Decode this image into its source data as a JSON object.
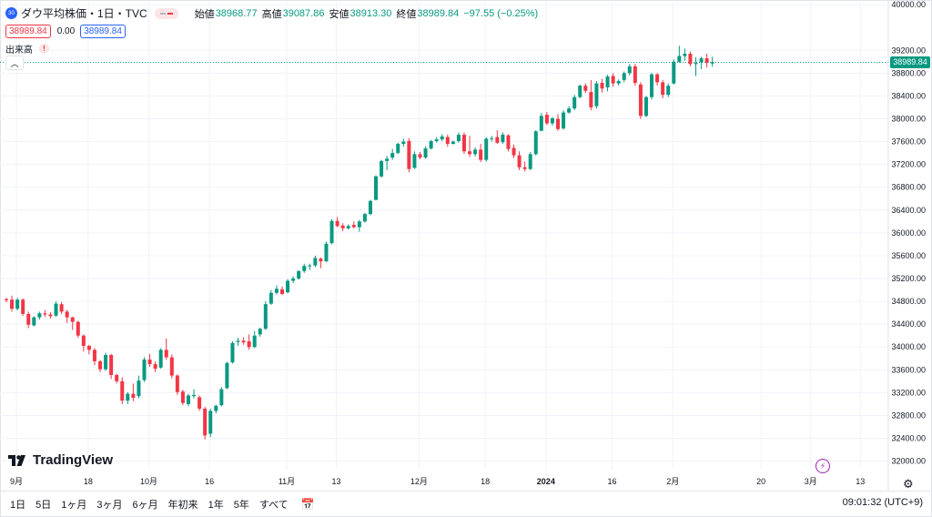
{
  "header": {
    "symbol_badge": "30",
    "title": "ダウ平均株価・1日・TVC",
    "open_label": "始値",
    "open": "38968.77",
    "high_label": "高値",
    "high": "39087.86",
    "low_label": "安値",
    "low": "38913.30",
    "close_label": "終値",
    "close": "38989.84",
    "change": "−97.55 (−0.25%)",
    "bid": "38989.84",
    "spread": "0.00",
    "ask": "38989.84",
    "volume_label": "出来高",
    "volume_warning": "!"
  },
  "logo_text": "TradingView",
  "last_price_tag": "38989.84",
  "bottom": {
    "ranges": [
      "1日",
      "5日",
      "1ヶ月",
      "3ヶ月",
      "6ヶ月",
      "年初来",
      "1年",
      "5年",
      "すべて"
    ],
    "clock": "09:01:32 (UTC+9)"
  },
  "colors": {
    "up": "#089981",
    "down": "#f23645",
    "grid": "#f0f3fa",
    "accent": "#2962ff",
    "text": "#131722"
  },
  "chart_data": {
    "type": "candlestick",
    "title": "ダウ平均株価・1日・TVC",
    "y_ticks": [
      32000,
      32400,
      32800,
      33200,
      33600,
      34000,
      34400,
      34800,
      35200,
      35600,
      36000,
      36400,
      36800,
      37200,
      37600,
      38000,
      38400,
      38800,
      39200,
      40000
    ],
    "x_ticks": [
      "9月",
      "18",
      "10月",
      "16",
      "11月",
      "13",
      "12月",
      "18",
      "2024",
      "16",
      "2月",
      "20",
      "3月",
      "13"
    ],
    "x_tick_candle_index": [
      1,
      14,
      25,
      36,
      50,
      59,
      74,
      86,
      97,
      109,
      120,
      136,
      145,
      154
    ],
    "ylim": [
      31850,
      40050
    ],
    "last_price": 38989.84,
    "candles_ohlc": [
      [
        34840,
        34860,
        34780,
        34820
      ],
      [
        34830,
        34900,
        34620,
        34670
      ],
      [
        34670,
        34860,
        34640,
        34830
      ],
      [
        34830,
        34850,
        34550,
        34580
      ],
      [
        34580,
        34620,
        34330,
        34390
      ],
      [
        34380,
        34540,
        34360,
        34520
      ],
      [
        34520,
        34620,
        34480,
        34590
      ],
      [
        34590,
        34650,
        34530,
        34570
      ],
      [
        34570,
        34610,
        34500,
        34540
      ],
      [
        34550,
        34800,
        34530,
        34760
      ],
      [
        34750,
        34790,
        34580,
        34620
      ],
      [
        34620,
        34650,
        34420,
        34520
      ],
      [
        34520,
        34530,
        34300,
        34440
      ],
      [
        34440,
        34460,
        34160,
        34200
      ],
      [
        34200,
        34220,
        33920,
        34020
      ],
      [
        34020,
        34040,
        33870,
        33950
      ],
      [
        33950,
        33980,
        33680,
        33750
      ],
      [
        33750,
        33770,
        33560,
        33610
      ],
      [
        33610,
        33900,
        33580,
        33860
      ],
      [
        33860,
        33880,
        33440,
        33510
      ],
      [
        33510,
        33530,
        33360,
        33400
      ],
      [
        33400,
        33470,
        33000,
        33060
      ],
      [
        33060,
        33210,
        33000,
        33180
      ],
      [
        33180,
        33360,
        33050,
        33110
      ],
      [
        33140,
        33500,
        33100,
        33410
      ],
      [
        33420,
        33820,
        33390,
        33780
      ],
      [
        33780,
        33880,
        33650,
        33700
      ],
      [
        33700,
        33750,
        33560,
        33620
      ],
      [
        33640,
        33980,
        33620,
        33950
      ],
      [
        33950,
        34150,
        33780,
        33820
      ],
      [
        33820,
        33870,
        33450,
        33500
      ],
      [
        33500,
        33520,
        33160,
        33210
      ],
      [
        33220,
        33250,
        32980,
        33020
      ],
      [
        33000,
        33180,
        32960,
        33150
      ],
      [
        33140,
        33260,
        33100,
        33160
      ],
      [
        33120,
        33150,
        32880,
        32920
      ],
      [
        32920,
        32950,
        32380,
        32450
      ],
      [
        32480,
        32920,
        32420,
        32880
      ],
      [
        32880,
        32990,
        32840,
        32970
      ],
      [
        32980,
        33300,
        32960,
        33260
      ],
      [
        33280,
        33740,
        33260,
        33720
      ],
      [
        33730,
        34100,
        33710,
        34070
      ],
      [
        34090,
        34160,
        34020,
        34110
      ],
      [
        34110,
        34170,
        34040,
        34080
      ],
      [
        34100,
        34220,
        33950,
        34000
      ],
      [
        34000,
        34280,
        33980,
        34200
      ],
      [
        34220,
        34340,
        34180,
        34320
      ],
      [
        34320,
        34800,
        34300,
        34750
      ],
      [
        34760,
        35000,
        34740,
        34950
      ],
      [
        34950,
        35080,
        34920,
        35020
      ],
      [
        35010,
        35060,
        34910,
        34930
      ],
      [
        34960,
        35190,
        34940,
        35160
      ],
      [
        35160,
        35240,
        35120,
        35200
      ],
      [
        35200,
        35350,
        35180,
        35330
      ],
      [
        35330,
        35460,
        35300,
        35420
      ],
      [
        35420,
        35460,
        35350,
        35430
      ],
      [
        35430,
        35600,
        35400,
        35560
      ],
      [
        35550,
        35570,
        35380,
        35500
      ],
      [
        35500,
        35850,
        35490,
        35810
      ],
      [
        35820,
        36240,
        35800,
        36210
      ],
      [
        36210,
        36280,
        36100,
        36120
      ],
      [
        36130,
        36170,
        36030,
        36080
      ],
      [
        36080,
        36150,
        36060,
        36120
      ],
      [
        36140,
        36200,
        36080,
        36100
      ],
      [
        36100,
        36230,
        36020,
        36200
      ],
      [
        36200,
        36350,
        36180,
        36330
      ],
      [
        36330,
        36580,
        36310,
        36560
      ],
      [
        36580,
        37010,
        36570,
        36990
      ],
      [
        36990,
        37280,
        36970,
        37260
      ],
      [
        37260,
        37350,
        37100,
        37300
      ],
      [
        37320,
        37470,
        37280,
        37400
      ],
      [
        37400,
        37580,
        37380,
        37560
      ],
      [
        37560,
        37650,
        37510,
        37600
      ],
      [
        37610,
        37660,
        37060,
        37120
      ],
      [
        37140,
        37430,
        37120,
        37380
      ],
      [
        37380,
        37420,
        37290,
        37320
      ],
      [
        37320,
        37520,
        37300,
        37480
      ],
      [
        37480,
        37630,
        37460,
        37610
      ],
      [
        37610,
        37680,
        37580,
        37640
      ],
      [
        37640,
        37730,
        37610,
        37690
      ],
      [
        37680,
        37720,
        37510,
        37560
      ],
      [
        37560,
        37620,
        37550,
        37600
      ],
      [
        37610,
        37760,
        37580,
        37720
      ],
      [
        37720,
        37760,
        37380,
        37430
      ],
      [
        37430,
        37700,
        37330,
        37380
      ],
      [
        37380,
        37500,
        37340,
        37460
      ],
      [
        37460,
        37560,
        37240,
        37280
      ],
      [
        37280,
        37680,
        37250,
        37650
      ],
      [
        37650,
        37700,
        37600,
        37660
      ],
      [
        37680,
        37800,
        37560,
        37580
      ],
      [
        37590,
        37760,
        37560,
        37720
      ],
      [
        37710,
        37730,
        37430,
        37470
      ],
      [
        37490,
        37550,
        37310,
        37360
      ],
      [
        37360,
        37430,
        37100,
        37150
      ],
      [
        37150,
        37250,
        37080,
        37120
      ],
      [
        37120,
        37420,
        37100,
        37380
      ],
      [
        37380,
        37800,
        37360,
        37780
      ],
      [
        37790,
        38100,
        37780,
        38050
      ],
      [
        38070,
        38120,
        37890,
        37920
      ],
      [
        37920,
        38030,
        37880,
        38010
      ],
      [
        38000,
        38080,
        37790,
        37820
      ],
      [
        37830,
        38150,
        37810,
        38110
      ],
      [
        38110,
        38220,
        38090,
        38180
      ],
      [
        38180,
        38420,
        38150,
        38380
      ],
      [
        38380,
        38600,
        38360,
        38580
      ],
      [
        38580,
        38620,
        38450,
        38490
      ],
      [
        38470,
        38680,
        38150,
        38200
      ],
      [
        38220,
        38660,
        38180,
        38620
      ],
      [
        38630,
        38700,
        38460,
        38530
      ],
      [
        38550,
        38770,
        38480,
        38740
      ],
      [
        38750,
        38800,
        38560,
        38620
      ],
      [
        38620,
        38690,
        38580,
        38660
      ],
      [
        38680,
        38830,
        38640,
        38800
      ],
      [
        38800,
        38960,
        38760,
        38920
      ],
      [
        38920,
        38960,
        38580,
        38630
      ],
      [
        38600,
        38640,
        38000,
        38050
      ],
      [
        38050,
        38400,
        38030,
        38380
      ],
      [
        38380,
        38800,
        38340,
        38780
      ],
      [
        38780,
        38800,
        38580,
        38640
      ],
      [
        38640,
        38680,
        38360,
        38420
      ],
      [
        38420,
        38620,
        38380,
        38580
      ],
      [
        38620,
        39040,
        38600,
        39000
      ],
      [
        39000,
        39280,
        38980,
        39100
      ],
      [
        39100,
        39230,
        39020,
        39140
      ],
      [
        39140,
        39180,
        38920,
        38960
      ],
      [
        38960,
        39080,
        38750,
        38980
      ],
      [
        38990,
        39090,
        38870,
        39060
      ],
      [
        39060,
        39140,
        38900,
        38980
      ],
      [
        38968.77,
        39087.86,
        38913.3,
        38989.84
      ]
    ]
  }
}
